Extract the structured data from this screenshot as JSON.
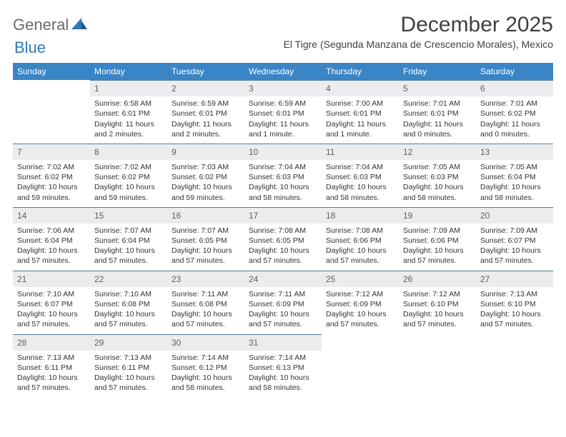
{
  "logo": {
    "part1": "General",
    "part2": "Blue"
  },
  "title": "December 2025",
  "location": "El Tigre (Segunda Manzana de Crescencio Morales), Mexico",
  "colors": {
    "header_bg": "#3a85c6",
    "header_text": "#ffffff",
    "daynum_bg": "#ececec",
    "border": "#5a7a94",
    "logo_gray": "#6a6a6a",
    "logo_blue": "#2f78b8"
  },
  "weekdays": [
    "Sunday",
    "Monday",
    "Tuesday",
    "Wednesday",
    "Thursday",
    "Friday",
    "Saturday"
  ],
  "weeks": [
    [
      null,
      {
        "n": "1",
        "sr": "Sunrise: 6:58 AM",
        "ss": "Sunset: 6:01 PM",
        "dl": "Daylight: 11 hours and 2 minutes."
      },
      {
        "n": "2",
        "sr": "Sunrise: 6:59 AM",
        "ss": "Sunset: 6:01 PM",
        "dl": "Daylight: 11 hours and 2 minutes."
      },
      {
        "n": "3",
        "sr": "Sunrise: 6:59 AM",
        "ss": "Sunset: 6:01 PM",
        "dl": "Daylight: 11 hours and 1 minute."
      },
      {
        "n": "4",
        "sr": "Sunrise: 7:00 AM",
        "ss": "Sunset: 6:01 PM",
        "dl": "Daylight: 11 hours and 1 minute."
      },
      {
        "n": "5",
        "sr": "Sunrise: 7:01 AM",
        "ss": "Sunset: 6:01 PM",
        "dl": "Daylight: 11 hours and 0 minutes."
      },
      {
        "n": "6",
        "sr": "Sunrise: 7:01 AM",
        "ss": "Sunset: 6:02 PM",
        "dl": "Daylight: 11 hours and 0 minutes."
      }
    ],
    [
      {
        "n": "7",
        "sr": "Sunrise: 7:02 AM",
        "ss": "Sunset: 6:02 PM",
        "dl": "Daylight: 10 hours and 59 minutes."
      },
      {
        "n": "8",
        "sr": "Sunrise: 7:02 AM",
        "ss": "Sunset: 6:02 PM",
        "dl": "Daylight: 10 hours and 59 minutes."
      },
      {
        "n": "9",
        "sr": "Sunrise: 7:03 AM",
        "ss": "Sunset: 6:02 PM",
        "dl": "Daylight: 10 hours and 59 minutes."
      },
      {
        "n": "10",
        "sr": "Sunrise: 7:04 AM",
        "ss": "Sunset: 6:03 PM",
        "dl": "Daylight: 10 hours and 58 minutes."
      },
      {
        "n": "11",
        "sr": "Sunrise: 7:04 AM",
        "ss": "Sunset: 6:03 PM",
        "dl": "Daylight: 10 hours and 58 minutes."
      },
      {
        "n": "12",
        "sr": "Sunrise: 7:05 AM",
        "ss": "Sunset: 6:03 PM",
        "dl": "Daylight: 10 hours and 58 minutes."
      },
      {
        "n": "13",
        "sr": "Sunrise: 7:05 AM",
        "ss": "Sunset: 6:04 PM",
        "dl": "Daylight: 10 hours and 58 minutes."
      }
    ],
    [
      {
        "n": "14",
        "sr": "Sunrise: 7:06 AM",
        "ss": "Sunset: 6:04 PM",
        "dl": "Daylight: 10 hours and 57 minutes."
      },
      {
        "n": "15",
        "sr": "Sunrise: 7:07 AM",
        "ss": "Sunset: 6:04 PM",
        "dl": "Daylight: 10 hours and 57 minutes."
      },
      {
        "n": "16",
        "sr": "Sunrise: 7:07 AM",
        "ss": "Sunset: 6:05 PM",
        "dl": "Daylight: 10 hours and 57 minutes."
      },
      {
        "n": "17",
        "sr": "Sunrise: 7:08 AM",
        "ss": "Sunset: 6:05 PM",
        "dl": "Daylight: 10 hours and 57 minutes."
      },
      {
        "n": "18",
        "sr": "Sunrise: 7:08 AM",
        "ss": "Sunset: 6:06 PM",
        "dl": "Daylight: 10 hours and 57 minutes."
      },
      {
        "n": "19",
        "sr": "Sunrise: 7:09 AM",
        "ss": "Sunset: 6:06 PM",
        "dl": "Daylight: 10 hours and 57 minutes."
      },
      {
        "n": "20",
        "sr": "Sunrise: 7:09 AM",
        "ss": "Sunset: 6:07 PM",
        "dl": "Daylight: 10 hours and 57 minutes."
      }
    ],
    [
      {
        "n": "21",
        "sr": "Sunrise: 7:10 AM",
        "ss": "Sunset: 6:07 PM",
        "dl": "Daylight: 10 hours and 57 minutes."
      },
      {
        "n": "22",
        "sr": "Sunrise: 7:10 AM",
        "ss": "Sunset: 6:08 PM",
        "dl": "Daylight: 10 hours and 57 minutes."
      },
      {
        "n": "23",
        "sr": "Sunrise: 7:11 AM",
        "ss": "Sunset: 6:08 PM",
        "dl": "Daylight: 10 hours and 57 minutes."
      },
      {
        "n": "24",
        "sr": "Sunrise: 7:11 AM",
        "ss": "Sunset: 6:09 PM",
        "dl": "Daylight: 10 hours and 57 minutes."
      },
      {
        "n": "25",
        "sr": "Sunrise: 7:12 AM",
        "ss": "Sunset: 6:09 PM",
        "dl": "Daylight: 10 hours and 57 minutes."
      },
      {
        "n": "26",
        "sr": "Sunrise: 7:12 AM",
        "ss": "Sunset: 6:10 PM",
        "dl": "Daylight: 10 hours and 57 minutes."
      },
      {
        "n": "27",
        "sr": "Sunrise: 7:13 AM",
        "ss": "Sunset: 6:10 PM",
        "dl": "Daylight: 10 hours and 57 minutes."
      }
    ],
    [
      {
        "n": "28",
        "sr": "Sunrise: 7:13 AM",
        "ss": "Sunset: 6:11 PM",
        "dl": "Daylight: 10 hours and 57 minutes."
      },
      {
        "n": "29",
        "sr": "Sunrise: 7:13 AM",
        "ss": "Sunset: 6:11 PM",
        "dl": "Daylight: 10 hours and 57 minutes."
      },
      {
        "n": "30",
        "sr": "Sunrise: 7:14 AM",
        "ss": "Sunset: 6:12 PM",
        "dl": "Daylight: 10 hours and 58 minutes."
      },
      {
        "n": "31",
        "sr": "Sunrise: 7:14 AM",
        "ss": "Sunset: 6:13 PM",
        "dl": "Daylight: 10 hours and 58 minutes."
      },
      null,
      null,
      null
    ]
  ]
}
